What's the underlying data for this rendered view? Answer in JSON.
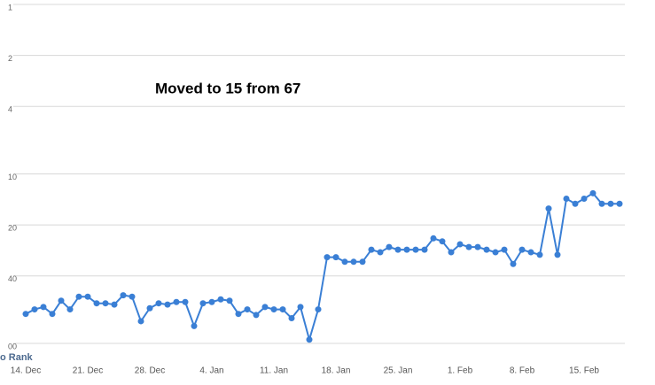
{
  "chart_data": {
    "type": "line",
    "annotation": "Moved to 15 from 67",
    "y_axis_label": "o Rank",
    "categories": [
      "14. Dec",
      null,
      null,
      null,
      null,
      null,
      null,
      "21. Dec",
      null,
      null,
      null,
      null,
      null,
      null,
      "28. Dec",
      null,
      null,
      null,
      null,
      null,
      null,
      "4. Jan",
      null,
      null,
      null,
      null,
      null,
      null,
      "11. Jan",
      null,
      null,
      null,
      null,
      null,
      null,
      "18. Jan",
      null,
      null,
      null,
      null,
      null,
      null,
      "25. Jan",
      null,
      null,
      null,
      null,
      null,
      null,
      "1. Feb",
      null,
      null,
      null,
      null,
      null,
      null,
      "8. Feb",
      null,
      null,
      null,
      null,
      null,
      null,
      "15. Feb",
      null,
      null,
      null,
      null
    ],
    "series": [
      {
        "color": "#3a7fd5",
        "values": [
          67,
          63,
          61,
          67,
          56,
          63,
          53,
          53,
          58,
          58,
          59,
          52,
          53,
          74,
          62,
          58,
          59,
          57,
          57,
          79,
          58,
          57,
          55,
          56,
          67,
          63,
          68,
          61,
          63,
          63,
          71,
          61,
          95,
          63,
          31,
          31,
          33,
          33,
          33,
          28,
          29,
          27,
          28,
          28,
          28,
          28,
          24,
          25,
          29,
          26,
          27,
          27,
          28,
          29,
          28,
          34,
          28,
          29,
          30,
          16,
          30,
          14,
          15,
          14,
          13,
          15,
          15,
          15
        ]
      }
    ],
    "y_scale": "log",
    "y_inverted": true,
    "ylim": [
      1,
      100
    ],
    "yticks": [
      1,
      2,
      4,
      10,
      20,
      40,
      {
        "value": 100,
        "label": "00"
      }
    ],
    "grid": true
  }
}
